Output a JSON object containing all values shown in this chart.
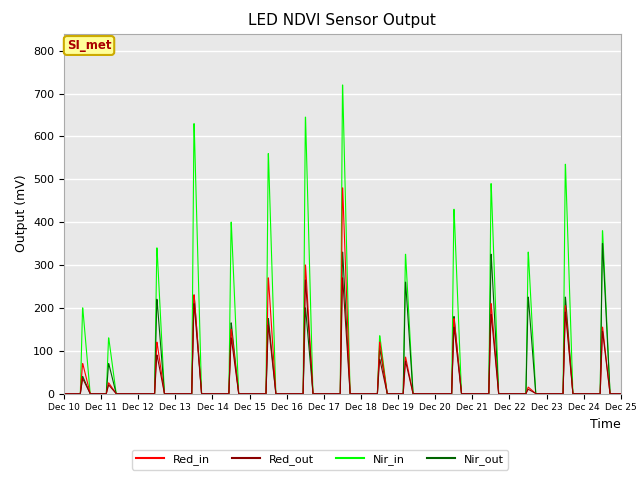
{
  "title": "LED NDVI Sensor Output",
  "xlabel": "Time",
  "ylabel": "Output (mV)",
  "ylim": [
    0,
    840
  ],
  "yticks": [
    0,
    100,
    200,
    300,
    400,
    500,
    600,
    700,
    800
  ],
  "legend_label": "SI_met",
  "legend_entries": [
    "Red_in",
    "Red_out",
    "Nir_in",
    "Nir_out"
  ],
  "line_colors": [
    "#ff0000",
    "#8b0000",
    "#00ff00",
    "#006400"
  ],
  "background_color": "#e8e8e8",
  "x_tick_labels": [
    "Dec 10",
    "Dec 11",
    "Dec 12",
    "Dec 13",
    "Dec 14",
    "Dec 15",
    "Dec 16",
    "Dec 17",
    "Dec 18",
    "Dec 19",
    "Dec 20",
    "Dec 21",
    "Dec 22",
    "Dec 23",
    "Dec 24",
    "Dec 25"
  ],
  "spike_days": [
    0.5,
    1.2,
    2.5,
    3.5,
    4.5,
    5.5,
    6.5,
    7.5,
    8.5,
    9.2,
    10.5,
    11.5,
    12.5,
    13.5,
    14.5
  ],
  "nir_in_peaks": [
    200,
    130,
    340,
    630,
    400,
    560,
    645,
    720,
    135,
    325,
    430,
    490,
    330,
    535,
    380
  ],
  "nir_out_peaks": [
    40,
    70,
    220,
    230,
    165,
    175,
    200,
    330,
    105,
    260,
    180,
    325,
    225,
    225,
    350
  ],
  "red_in_peaks": [
    70,
    25,
    120,
    230,
    150,
    270,
    300,
    480,
    120,
    85,
    175,
    210,
    15,
    205,
    155
  ],
  "red_out_peaks": [
    35,
    20,
    90,
    210,
    130,
    160,
    265,
    270,
    80,
    75,
    155,
    185,
    10,
    190,
    145
  ]
}
